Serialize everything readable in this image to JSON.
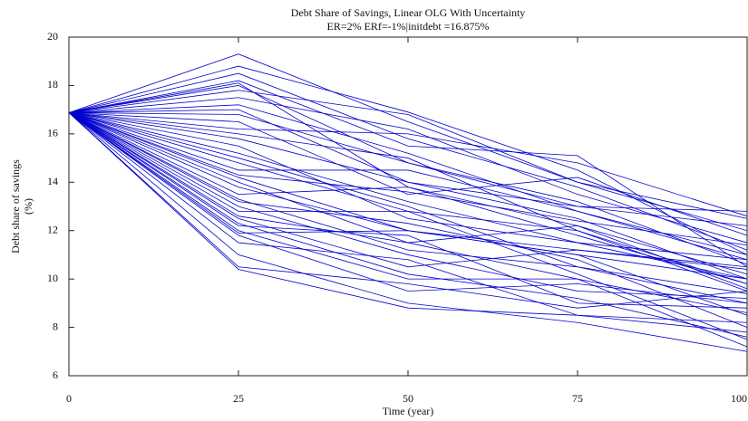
{
  "chart_data": {
    "type": "line",
    "title": "Debt Share of Savings, Linear OLG With Uncertainty",
    "subtitle": "ER=2% ERf=-1%|initdebt =16.875%",
    "xlabel": "Time (year)",
    "ylabel": [
      "Debt share of savings",
      "(%)"
    ],
    "color": "#0000cc",
    "x": [
      0,
      25,
      50,
      75,
      100
    ],
    "xlim": [
      0,
      100
    ],
    "xticks": [
      0,
      25,
      50,
      75,
      100
    ],
    "ylim": [
      6,
      20
    ],
    "yticks": [
      6,
      8,
      10,
      12,
      14,
      16,
      18,
      20
    ],
    "series": [
      {
        "values": [
          16.875,
          19.3,
          16.5,
          14.0,
          12.5
        ]
      },
      {
        "values": [
          16.875,
          18.8,
          16.9,
          14.5,
          11.0
        ]
      },
      {
        "values": [
          16.875,
          18.2,
          15.5,
          15.1,
          10.5
        ]
      },
      {
        "values": [
          16.875,
          18.0,
          14.8,
          13.0,
          12.8
        ]
      },
      {
        "values": [
          16.875,
          17.5,
          16.2,
          13.5,
          11.5
        ]
      },
      {
        "values": [
          16.875,
          17.0,
          14.0,
          12.5,
          10.0
        ]
      },
      {
        "values": [
          16.875,
          16.5,
          13.5,
          14.2,
          11.8
        ]
      },
      {
        "values": [
          16.875,
          16.0,
          15.0,
          12.0,
          9.5
        ]
      },
      {
        "values": [
          16.875,
          15.5,
          12.5,
          11.5,
          10.8
        ]
      },
      {
        "values": [
          16.875,
          15.0,
          13.0,
          10.5,
          9.0
        ]
      },
      {
        "values": [
          16.875,
          14.5,
          14.5,
          12.8,
          11.0
        ]
      },
      {
        "values": [
          16.875,
          14.2,
          12.0,
          11.0,
          8.5
        ]
      },
      {
        "values": [
          16.875,
          14.0,
          11.5,
          12.2,
          10.2
        ]
      },
      {
        "values": [
          16.875,
          13.5,
          13.8,
          11.8,
          9.8
        ]
      },
      {
        "values": [
          16.875,
          13.2,
          12.3,
          10.8,
          8.0
        ]
      },
      {
        "values": [
          16.875,
          13.0,
          11.0,
          9.5,
          9.2
        ]
      },
      {
        "values": [
          16.875,
          12.8,
          12.8,
          10.2,
          7.5
        ]
      },
      {
        "values": [
          16.875,
          12.5,
          10.5,
          11.2,
          10.5
        ]
      },
      {
        "values": [
          16.875,
          12.2,
          11.8,
          9.0,
          8.8
        ]
      },
      {
        "values": [
          16.875,
          12.0,
          10.0,
          10.0,
          7.2
        ]
      },
      {
        "values": [
          16.875,
          11.8,
          9.5,
          9.8,
          9.0
        ]
      },
      {
        "values": [
          16.875,
          11.5,
          10.8,
          8.5,
          8.2
        ]
      },
      {
        "values": [
          16.875,
          11.0,
          9.0,
          8.2,
          7.0
        ]
      },
      {
        "values": [
          16.875,
          10.5,
          9.8,
          8.8,
          9.5
        ]
      },
      {
        "values": [
          16.875,
          10.4,
          8.8,
          8.5,
          7.8
        ]
      },
      {
        "values": [
          16.875,
          18.5,
          15.8,
          13.8,
          11.2
        ]
      },
      {
        "values": [
          16.875,
          17.8,
          16.8,
          14.0,
          12.0
        ]
      },
      {
        "values": [
          16.875,
          16.8,
          14.8,
          13.2,
          10.6
        ]
      },
      {
        "values": [
          16.875,
          15.8,
          14.0,
          13.0,
          12.2
        ]
      },
      {
        "values": [
          16.875,
          15.2,
          13.2,
          11.5,
          10.0
        ]
      },
      {
        "values": [
          16.875,
          14.8,
          12.8,
          12.0,
          9.8
        ]
      },
      {
        "values": [
          16.875,
          13.8,
          12.0,
          11.2,
          10.4
        ]
      },
      {
        "values": [
          16.875,
          13.3,
          11.2,
          10.5,
          9.4
        ]
      },
      {
        "values": [
          16.875,
          12.6,
          11.5,
          10.0,
          8.6
        ]
      },
      {
        "values": [
          16.875,
          12.3,
          10.2,
          9.2,
          7.6
        ]
      },
      {
        "values": [
          16.875,
          11.9,
          12.0,
          11.0,
          10.0
        ]
      },
      {
        "values": [
          16.875,
          17.2,
          15.2,
          12.8,
          10.8
        ]
      },
      {
        "values": [
          16.875,
          18.1,
          13.8,
          12.2,
          9.6
        ]
      },
      {
        "values": [
          16.875,
          14.3,
          13.6,
          12.4,
          11.4
        ]
      },
      {
        "values": [
          16.875,
          16.2,
          16.0,
          14.8,
          12.6
        ]
      }
    ]
  }
}
